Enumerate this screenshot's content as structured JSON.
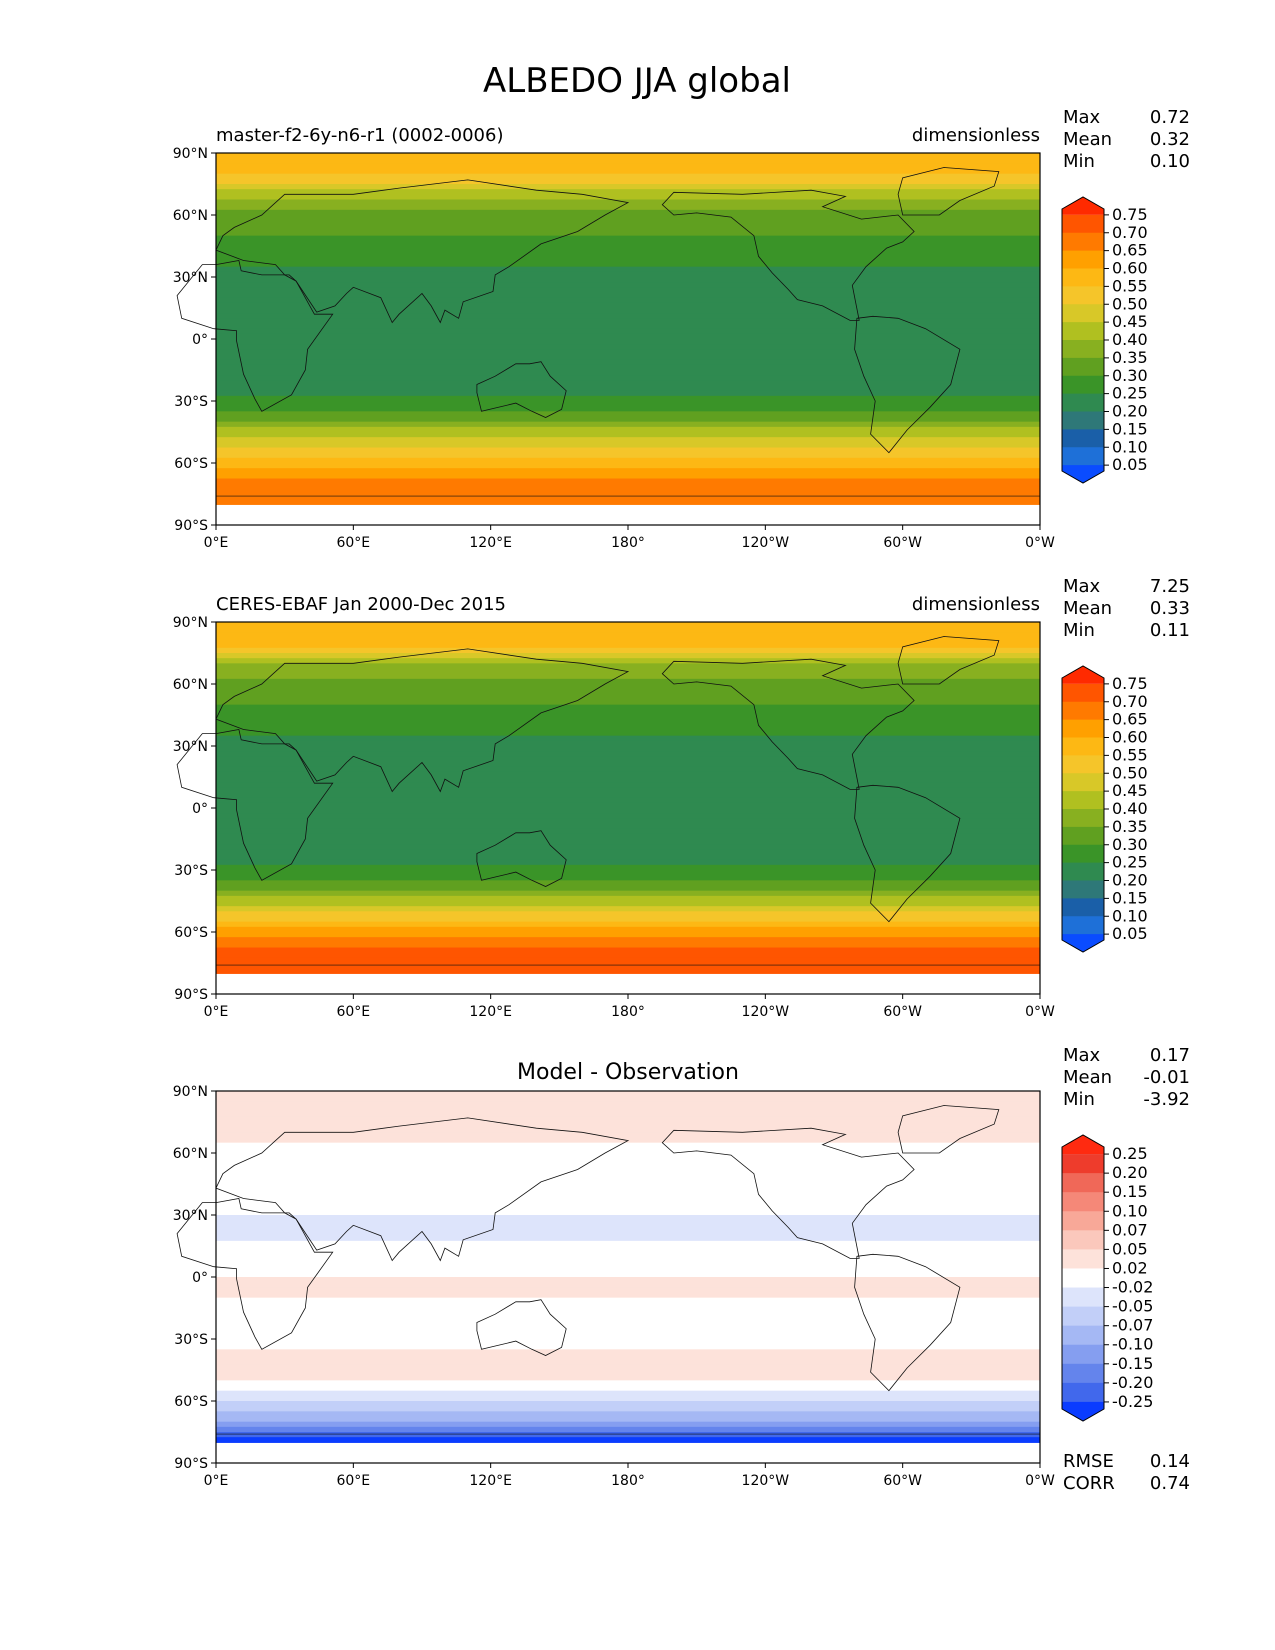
{
  "title": "ALBEDO JJA global",
  "axes": {
    "lat_ticks": [
      "90°N",
      "60°N",
      "30°N",
      "0°",
      "30°S",
      "60°S",
      "90°S"
    ],
    "lon_ticks": [
      "0°E",
      "60°E",
      "120°E",
      "180°",
      "120°W",
      "60°W",
      "0°W"
    ]
  },
  "chart_data": [
    {
      "type": "heatmap",
      "title": "master-f2-6y-n6-r1 (0002-0006)",
      "units": "dimensionless",
      "xlim": [
        0,
        360
      ],
      "ylim": [
        -90,
        90
      ],
      "stats": [
        {
          "label": "Max",
          "value": "0.72"
        },
        {
          "label": "Mean",
          "value": "0.32"
        },
        {
          "label": "Min",
          "value": "0.10"
        }
      ],
      "colorbar": {
        "ticks": [
          "0.75",
          "0.70",
          "0.65",
          "0.60",
          "0.55",
          "0.50",
          "0.45",
          "0.40",
          "0.35",
          "0.30",
          "0.25",
          "0.20",
          "0.15",
          "0.10",
          "0.05"
        ],
        "colors": [
          "#ff2a00",
          "#ff5500",
          "#ff7a00",
          "#ffa000",
          "#fdb814",
          "#f5c52a",
          "#d8c828",
          "#b0c020",
          "#88b020",
          "#60a020",
          "#3a9428",
          "#2f8a50",
          "#2e7878",
          "#1a5fa8",
          "#1e70d8",
          "#0a4cff"
        ]
      },
      "zonal_mean_profile": {
        "lat": [
          80,
          70,
          60,
          50,
          40,
          30,
          20,
          10,
          0,
          -10,
          -20,
          -30,
          -40,
          -50,
          -60,
          -70,
          -80
        ],
        "value": [
          0.55,
          0.42,
          0.32,
          0.3,
          0.28,
          0.22,
          0.2,
          0.22,
          0.24,
          0.22,
          0.22,
          0.26,
          0.36,
          0.48,
          0.58,
          0.68,
          0.65
        ]
      }
    },
    {
      "type": "heatmap",
      "title": "CERES-EBAF Jan 2000-Dec 2015",
      "units": "dimensionless",
      "xlim": [
        0,
        360
      ],
      "ylim": [
        -90,
        90
      ],
      "stats": [
        {
          "label": "Max",
          "value": "7.25"
        },
        {
          "label": "Mean",
          "value": "0.33"
        },
        {
          "label": "Min",
          "value": "0.11"
        }
      ],
      "colorbar": {
        "ticks": [
          "0.75",
          "0.70",
          "0.65",
          "0.60",
          "0.55",
          "0.50",
          "0.45",
          "0.40",
          "0.35",
          "0.30",
          "0.25",
          "0.20",
          "0.15",
          "0.10",
          "0.05"
        ],
        "colors": [
          "#ff2a00",
          "#ff5500",
          "#ff7a00",
          "#ffa000",
          "#fdb814",
          "#f5c52a",
          "#d8c828",
          "#b0c020",
          "#88b020",
          "#60a020",
          "#3a9428",
          "#2f8a50",
          "#2e7878",
          "#1a5fa8",
          "#1e70d8",
          "#0a4cff"
        ]
      },
      "zonal_mean_profile": {
        "lat": [
          80,
          70,
          60,
          50,
          40,
          30,
          20,
          10,
          0,
          -10,
          -20,
          -30,
          -40,
          -50,
          -60,
          -70,
          -80
        ],
        "value": [
          0.58,
          0.4,
          0.32,
          0.3,
          0.27,
          0.22,
          0.2,
          0.21,
          0.23,
          0.2,
          0.22,
          0.26,
          0.36,
          0.5,
          0.62,
          0.74,
          0.75
        ]
      }
    },
    {
      "type": "heatmap",
      "title": "Model - Observation",
      "units": "",
      "xlim": [
        0,
        360
      ],
      "ylim": [
        -90,
        90
      ],
      "stats": [
        {
          "label": "Max",
          "value": "0.17"
        },
        {
          "label": "Mean",
          "value": "-0.01"
        },
        {
          "label": "Min",
          "value": "-3.92"
        }
      ],
      "metrics": [
        {
          "label": "RMSE",
          "value": "0.14"
        },
        {
          "label": "CORR",
          "value": "0.74"
        }
      ],
      "colorbar": {
        "ticks": [
          "0.25",
          "0.20",
          "0.15",
          "0.10",
          "0.07",
          "0.05",
          "0.02",
          "-0.02",
          "-0.05",
          "-0.07",
          "-0.10",
          "-0.15",
          "-0.20",
          "-0.25"
        ],
        "colors": [
          "#ff2a10",
          "#ee3c2c",
          "#f06858",
          "#f58878",
          "#f8a898",
          "#fbc8bc",
          "#fde2da",
          "#ffffff",
          "#dde4fb",
          "#c2cff8",
          "#a5b8f4",
          "#859ef0",
          "#6484ec",
          "#4168ec",
          "#0a3cff"
        ]
      },
      "zonal_mean_profile": {
        "lat": [
          80,
          70,
          60,
          50,
          40,
          30,
          20,
          10,
          0,
          -10,
          -20,
          -30,
          -40,
          -50,
          -60,
          -70,
          -80
        ],
        "value": [
          0.02,
          0.05,
          -0.02,
          -0.02,
          -0.01,
          -0.02,
          -0.03,
          0.01,
          0.02,
          0.02,
          0.0,
          0.01,
          0.03,
          0.02,
          -0.05,
          -0.1,
          -0.3
        ]
      }
    }
  ]
}
